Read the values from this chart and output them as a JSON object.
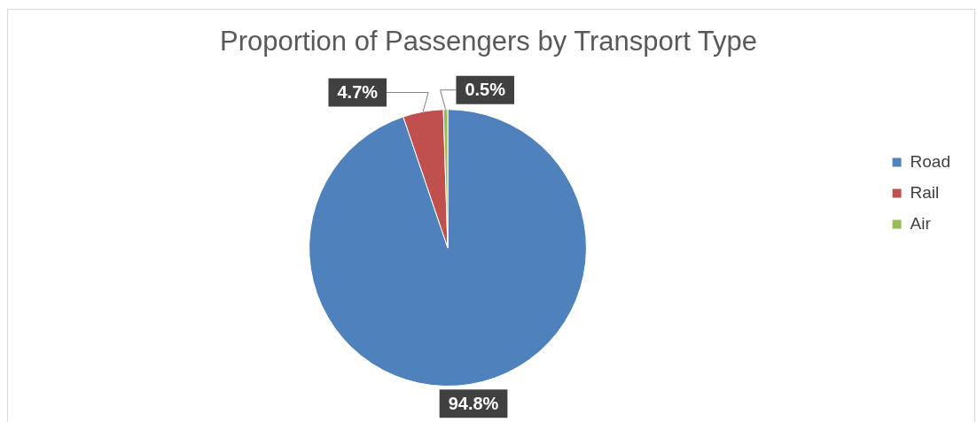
{
  "chart_data": {
    "type": "pie",
    "title": "Proportion of Passengers by Transport Type",
    "categories": [
      "Road",
      "Rail",
      "Air"
    ],
    "values": [
      94.8,
      4.7,
      0.5
    ],
    "colors": [
      "#4f81bd",
      "#c0504d",
      "#9bbb59"
    ],
    "value_labels": [
      "94.8%",
      "4.7%",
      "0.5%"
    ],
    "legend": "right"
  }
}
